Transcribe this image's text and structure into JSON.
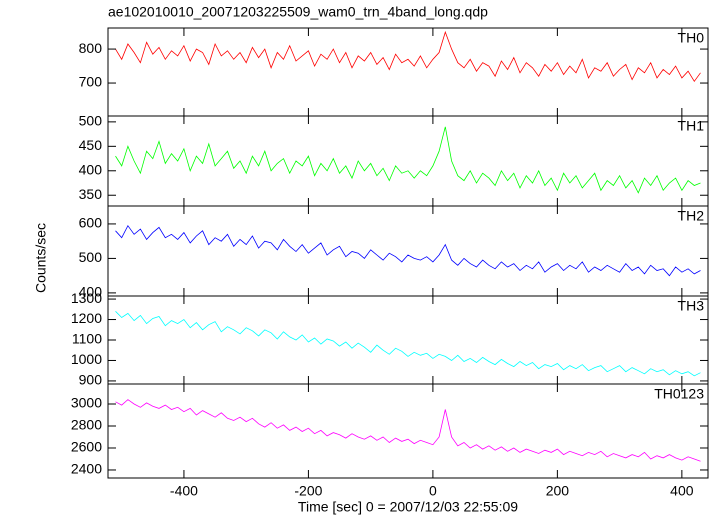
{
  "chart_data": {
    "type": "line",
    "title": "ae102010010_20071203225509_wam0_trn_4band_long.qdp",
    "x_label": "Time [sec] 0 = 2007/12/03 22:55:09",
    "y_label": "Counts/sec",
    "xlim": [
      -522,
      442
    ],
    "xticks": [
      -400,
      -200,
      0,
      200,
      400
    ],
    "x": [
      -510,
      -500,
      -490,
      -480,
      -470,
      -460,
      -450,
      -440,
      -430,
      -420,
      -410,
      -400,
      -390,
      -380,
      -370,
      -360,
      -350,
      -340,
      -330,
      -320,
      -310,
      -300,
      -290,
      -280,
      -270,
      -260,
      -250,
      -240,
      -230,
      -220,
      -210,
      -200,
      -190,
      -180,
      -170,
      -160,
      -150,
      -140,
      -130,
      -120,
      -110,
      -100,
      -90,
      -80,
      -70,
      -60,
      -50,
      -40,
      -30,
      -20,
      -10,
      0,
      10,
      20,
      30,
      40,
      50,
      60,
      70,
      80,
      90,
      100,
      110,
      120,
      130,
      140,
      150,
      160,
      170,
      180,
      190,
      200,
      210,
      220,
      230,
      240,
      250,
      260,
      270,
      280,
      290,
      300,
      310,
      320,
      330,
      340,
      350,
      360,
      370,
      380,
      390,
      400,
      410,
      420,
      430
    ],
    "series": [
      {
        "name": "TH0",
        "color": "#ff0000",
        "ylim": [
          603,
          862
        ],
        "yticks": [
          700,
          800
        ],
        "values": [
          800,
          770,
          815,
          790,
          760,
          820,
          785,
          805,
          770,
          795,
          780,
          810,
          765,
          800,
          790,
          755,
          815,
          780,
          795,
          770,
          790,
          760,
          805,
          775,
          800,
          745,
          790,
          770,
          810,
          765,
          780,
          795,
          750,
          785,
          770,
          800,
          760,
          790,
          745,
          780,
          765,
          790,
          755,
          775,
          740,
          785,
          760,
          770,
          750,
          780,
          745,
          770,
          790,
          850,
          800,
          760,
          745,
          770,
          735,
          760,
          750,
          720,
          765,
          740,
          775,
          730,
          760,
          745,
          720,
          755,
          735,
          760,
          725,
          750,
          730,
          770,
          715,
          745,
          735,
          760,
          720,
          740,
          755,
          710,
          745,
          730,
          760,
          715,
          740,
          725,
          750,
          715,
          735,
          705,
          730
        ]
      },
      {
        "name": "TH1",
        "color": "#00ff00",
        "ylim": [
          328,
          512
        ],
        "yticks": [
          350,
          400,
          450,
          500
        ],
        "values": [
          430,
          410,
          450,
          420,
          395,
          440,
          425,
          460,
          415,
          435,
          420,
          445,
          400,
          430,
          415,
          455,
          410,
          425,
          440,
          405,
          420,
          395,
          430,
          410,
          440,
          400,
          415,
          425,
          395,
          420,
          410,
          430,
          390,
          415,
          400,
          425,
          395,
          410,
          385,
          420,
          400,
          415,
          390,
          405,
          380,
          410,
          395,
          400,
          385,
          400,
          390,
          410,
          440,
          490,
          420,
          390,
          380,
          400,
          375,
          395,
          385,
          370,
          400,
          380,
          395,
          365,
          390,
          375,
          400,
          370,
          385,
          360,
          395,
          375,
          390,
          365,
          380,
          395,
          360,
          380,
          370,
          390,
          365,
          380,
          355,
          385,
          370,
          390,
          360,
          375,
          385,
          360,
          380,
          370,
          375
        ]
      },
      {
        "name": "TH2",
        "color": "#0000ff",
        "ylim": [
          391,
          652
        ],
        "yticks": [
          400,
          500,
          600
        ],
        "values": [
          580,
          560,
          595,
          570,
          585,
          555,
          575,
          590,
          560,
          570,
          555,
          575,
          545,
          565,
          580,
          540,
          560,
          550,
          570,
          535,
          555,
          540,
          565,
          530,
          550,
          545,
          525,
          555,
          535,
          520,
          540,
          515,
          530,
          545,
          510,
          525,
          535,
          505,
          520,
          515,
          500,
          525,
          510,
          495,
          515,
          505,
          490,
          510,
          500,
          495,
          505,
          490,
          510,
          540,
          495,
          480,
          500,
          485,
          475,
          495,
          480,
          470,
          490,
          475,
          485,
          465,
          480,
          470,
          490,
          460,
          475,
          485,
          465,
          480,
          470,
          490,
          460,
          475,
          465,
          480,
          470,
          460,
          485,
          465,
          475,
          455,
          480,
          465,
          470,
          450,
          475,
          460,
          470,
          455,
          465
        ]
      },
      {
        "name": "TH3",
        "color": "#00ffff",
        "ylim": [
          885,
          1315
        ],
        "yticks": [
          900,
          1000,
          1100,
          1200,
          1300
        ],
        "values": [
          1240,
          1210,
          1230,
          1195,
          1220,
          1180,
          1205,
          1215,
          1170,
          1195,
          1180,
          1200,
          1160,
          1185,
          1150,
          1175,
          1190,
          1140,
          1165,
          1150,
          1130,
          1160,
          1145,
          1120,
          1150,
          1135,
          1105,
          1140,
          1115,
          1100,
          1125,
          1090,
          1110,
          1080,
          1105,
          1095,
          1070,
          1090,
          1060,
          1085,
          1065,
          1040,
          1075,
          1050,
          1030,
          1060,
          1045,
          1020,
          1040,
          1025,
          1035,
          1010,
          1030,
          1020,
          1000,
          1025,
          995,
          1010,
          990,
          1015,
          995,
          980,
          1005,
          985,
          970,
          995,
          975,
          990,
          960,
          980,
          970,
          985,
          955,
          975,
          960,
          980,
          950,
          965,
          975,
          945,
          960,
          975,
          945,
          965,
          950,
          935,
          960,
          945,
          955,
          930,
          950,
          935,
          945,
          925,
          940
        ]
      },
      {
        "name": "TH0123",
        "color": "#ff00ff",
        "ylim": [
          2327,
          3182
        ],
        "yticks": [
          2400,
          2600,
          2800,
          3000
        ],
        "values": [
          3020,
          2990,
          3040,
          3000,
          2970,
          3010,
          2980,
          2960,
          2990,
          2950,
          2970,
          2930,
          2960,
          2900,
          2940,
          2910,
          2880,
          2920,
          2870,
          2850,
          2880,
          2840,
          2870,
          2820,
          2790,
          2830,
          2780,
          2810,
          2760,
          2790,
          2750,
          2780,
          2730,
          2760,
          2710,
          2740,
          2720,
          2690,
          2730,
          2700,
          2680,
          2710,
          2670,
          2700,
          2650,
          2690,
          2660,
          2680,
          2640,
          2670,
          2650,
          2630,
          2700,
          2950,
          2700,
          2620,
          2650,
          2600,
          2630,
          2590,
          2620,
          2580,
          2610,
          2570,
          2600,
          2560,
          2590,
          2570,
          2550,
          2580,
          2560,
          2590,
          2540,
          2570,
          2550,
          2530,
          2560,
          2540,
          2570,
          2520,
          2550,
          2530,
          2510,
          2540,
          2520,
          2560,
          2500,
          2530,
          2510,
          2540,
          2510,
          2490,
          2520,
          2500,
          2480
        ]
      }
    ]
  }
}
